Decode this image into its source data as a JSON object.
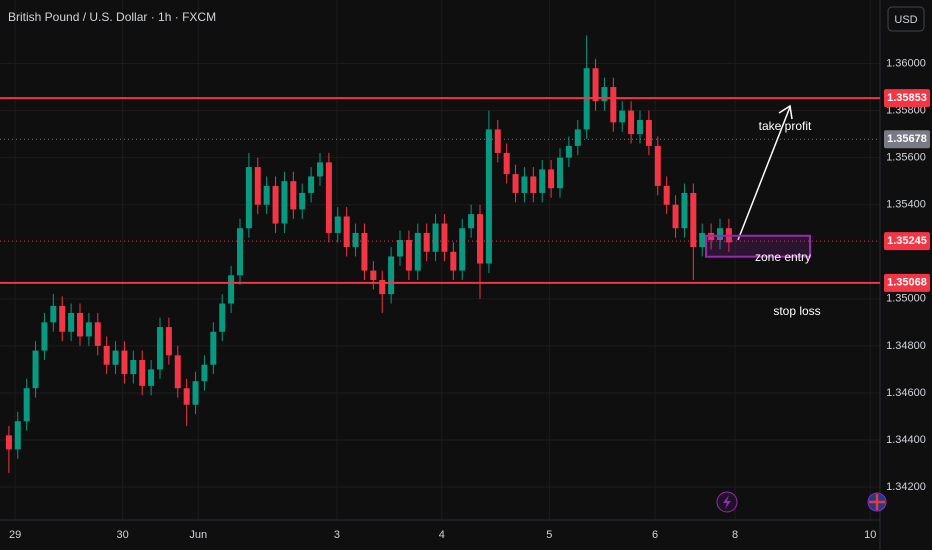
{
  "chart_data": {
    "type": "candlestick",
    "title": "British Pound / U.S. Dollar · 1h · FXCM",
    "currency": "USD",
    "up_color": "#089981",
    "down_color": "#f23645",
    "grid": true,
    "xlim": [
      0,
      99
    ],
    "ylim": [
      1.3406,
      1.3627
    ],
    "xticks": [
      {
        "value": 1.7,
        "label": "29"
      },
      {
        "value": 13.8,
        "label": "30"
      },
      {
        "value": 22.3,
        "label": "Jun"
      },
      {
        "value": 37.9,
        "label": "3"
      },
      {
        "value": 49.7,
        "label": "4"
      },
      {
        "value": 61.8,
        "label": "5"
      },
      {
        "value": 73.7,
        "label": "6"
      },
      {
        "value": 82.7,
        "label": "8"
      },
      {
        "value": 97.9,
        "label": "10"
      }
    ],
    "yticks": [
      {
        "value": 1.36,
        "label": "1.36000"
      },
      {
        "value": 1.358,
        "label": "1.35800"
      },
      {
        "value": 1.356,
        "label": "1.35600"
      },
      {
        "value": 1.354,
        "label": "1.35400"
      },
      {
        "value": 1.35,
        "label": "1.35000"
      },
      {
        "value": 1.348,
        "label": "1.34800"
      },
      {
        "value": 1.346,
        "label": "1.34600"
      },
      {
        "value": 1.344,
        "label": "1.34400"
      },
      {
        "value": 1.342,
        "label": "1.34200"
      }
    ],
    "x": [
      1,
      2,
      3,
      4,
      5,
      6,
      7,
      8,
      9,
      10,
      11,
      12,
      13,
      14,
      15,
      16,
      17,
      18,
      19,
      20,
      21,
      22,
      23,
      24,
      25,
      26,
      27,
      28,
      29,
      30,
      31,
      32,
      33,
      34,
      35,
      36,
      37,
      38,
      39,
      40,
      41,
      42,
      43,
      44,
      45,
      46,
      47,
      48,
      49,
      50,
      51,
      52,
      53,
      54,
      55,
      56,
      57,
      58,
      59,
      60,
      61,
      62,
      63,
      64,
      65,
      66,
      67,
      68,
      69,
      70,
      71,
      72,
      73,
      74,
      75,
      76,
      77,
      78,
      79,
      80,
      81,
      82
    ],
    "open": [
      1.3442,
      1.3436,
      1.3448,
      1.3462,
      1.3478,
      1.349,
      1.3497,
      1.3486,
      1.3494,
      1.3484,
      1.349,
      1.348,
      1.3472,
      1.3478,
      1.3468,
      1.3474,
      1.3463,
      1.347,
      1.3488,
      1.3476,
      1.3462,
      1.3455,
      1.3465,
      1.3472,
      1.3486,
      1.3498,
      1.351,
      1.353,
      1.3556,
      1.354,
      1.3548,
      1.3532,
      1.355,
      1.3538,
      1.3545,
      1.3552,
      1.3558,
      1.3528,
      1.3535,
      1.3522,
      1.3528,
      1.3512,
      1.3508,
      1.3502,
      1.3518,
      1.3525,
      1.3512,
      1.3528,
      1.352,
      1.3532,
      1.352,
      1.3512,
      1.353,
      1.3536,
      1.3515,
      1.3572,
      1.3562,
      1.3553,
      1.3545,
      1.3552,
      1.3545,
      1.3555,
      1.3547,
      1.356,
      1.3565,
      1.3572,
      1.3598,
      1.3584,
      1.359,
      1.3575,
      1.358,
      1.357,
      1.3576,
      1.3565,
      1.3548,
      1.354,
      1.353,
      1.3545,
      1.3522,
      1.3528,
      1.3525,
      1.353
    ],
    "high": [
      1.3446,
      1.3452,
      1.3466,
      1.3482,
      1.3494,
      1.3502,
      1.3501,
      1.3498,
      1.3498,
      1.3494,
      1.3494,
      1.3484,
      1.3482,
      1.3482,
      1.3478,
      1.3478,
      1.3474,
      1.3492,
      1.3492,
      1.348,
      1.3466,
      1.3469,
      1.3476,
      1.349,
      1.3502,
      1.3514,
      1.3534,
      1.3562,
      1.356,
      1.3552,
      1.3552,
      1.3554,
      1.3554,
      1.3549,
      1.3556,
      1.3562,
      1.3562,
      1.3539,
      1.3539,
      1.3532,
      1.3532,
      1.3516,
      1.3512,
      1.3522,
      1.3529,
      1.3529,
      1.3532,
      1.3532,
      1.3536,
      1.3536,
      1.3524,
      1.3534,
      1.354,
      1.354,
      1.358,
      1.3576,
      1.3566,
      1.3557,
      1.3556,
      1.3556,
      1.3559,
      1.3559,
      1.3564,
      1.3569,
      1.3576,
      1.3612,
      1.3602,
      1.3594,
      1.3594,
      1.3584,
      1.3584,
      1.358,
      1.358,
      1.3569,
      1.3552,
      1.3544,
      1.3549,
      1.3549,
      1.3532,
      1.3532,
      1.3534,
      1.3534
    ],
    "low": [
      1.3426,
      1.3432,
      1.3444,
      1.3458,
      1.3474,
      1.3486,
      1.3482,
      1.3482,
      1.348,
      1.348,
      1.3476,
      1.3468,
      1.3468,
      1.3464,
      1.3464,
      1.3459,
      1.3459,
      1.3466,
      1.3472,
      1.3458,
      1.3446,
      1.3451,
      1.3461,
      1.3468,
      1.3482,
      1.3494,
      1.3506,
      1.3526,
      1.3536,
      1.3536,
      1.3528,
      1.3528,
      1.3534,
      1.3534,
      1.3541,
      1.3548,
      1.3524,
      1.3524,
      1.3518,
      1.3518,
      1.3508,
      1.3504,
      1.3494,
      1.3498,
      1.3514,
      1.3508,
      1.3508,
      1.3516,
      1.3516,
      1.3516,
      1.3508,
      1.3508,
      1.3526,
      1.35,
      1.3511,
      1.3558,
      1.3549,
      1.3541,
      1.3541,
      1.3541,
      1.3541,
      1.3543,
      1.3543,
      1.3556,
      1.3561,
      1.3568,
      1.358,
      1.358,
      1.3571,
      1.3571,
      1.3566,
      1.3566,
      1.3561,
      1.3544,
      1.3536,
      1.3526,
      1.3526,
      1.3508,
      1.3518,
      1.3521,
      1.3521,
      1.352
    ],
    "close": [
      1.3436,
      1.3448,
      1.3462,
      1.3478,
      1.349,
      1.3497,
      1.3486,
      1.3494,
      1.3484,
      1.349,
      1.348,
      1.3472,
      1.3478,
      1.3468,
      1.3474,
      1.3463,
      1.347,
      1.3488,
      1.3476,
      1.3462,
      1.3455,
      1.3465,
      1.3472,
      1.3486,
      1.3498,
      1.351,
      1.353,
      1.3556,
      1.354,
      1.3548,
      1.3532,
      1.355,
      1.3538,
      1.3545,
      1.3552,
      1.3558,
      1.3528,
      1.3535,
      1.3522,
      1.3528,
      1.3512,
      1.3508,
      1.3502,
      1.3518,
      1.3525,
      1.3512,
      1.3528,
      1.352,
      1.3532,
      1.352,
      1.3512,
      1.353,
      1.3536,
      1.3515,
      1.3572,
      1.3562,
      1.3553,
      1.3545,
      1.3552,
      1.3545,
      1.3555,
      1.3547,
      1.356,
      1.3565,
      1.3572,
      1.3598,
      1.3584,
      1.359,
      1.3575,
      1.358,
      1.357,
      1.3576,
      1.3565,
      1.3548,
      1.354,
      1.353,
      1.3545,
      1.3522,
      1.3528,
      1.3525,
      1.353,
      1.3524
    ],
    "levels": [
      {
        "value": 1.35853,
        "color": "#f23645",
        "style": "solid"
      },
      {
        "value": 1.35678,
        "color": "#787b86",
        "style": "dotted"
      },
      {
        "value": 1.35245,
        "color": "#f23645",
        "style": "dotted"
      },
      {
        "value": 1.35068,
        "color": "#f23645",
        "style": "solid"
      }
    ],
    "zone": {
      "top": 1.35268,
      "bottom": 1.35179,
      "color": "#9c27b0"
    },
    "annotations": [
      "take profit",
      "zone entry",
      "stop loss"
    ]
  }
}
